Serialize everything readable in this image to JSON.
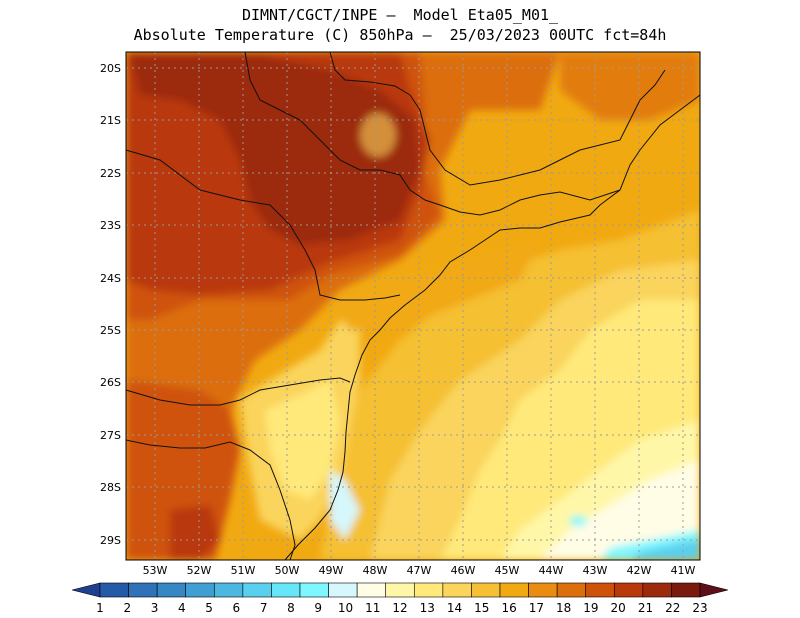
{
  "header": {
    "line1": "DIMNT/CGCT/INPE –  Model Eta05_M01_",
    "line2": "Absolute Temperature (C) 850hPa –  25/03/2023 00UTC fct=84h"
  },
  "map": {
    "lat_labels": [
      "20S",
      "21S",
      "22S",
      "23S",
      "24S",
      "25S",
      "26S",
      "27S",
      "28S",
      "29S"
    ],
    "lon_labels": [
      "53W",
      "52W",
      "51W",
      "50W",
      "49W",
      "48W",
      "47W",
      "46W",
      "45W",
      "44W",
      "43W",
      "42W",
      "41W"
    ],
    "lat_range": [
      -29.4,
      -19.9
    ],
    "lon_range": [
      -53.8,
      -40.3
    ],
    "grid": true
  },
  "colorbar": {
    "labels": [
      "1",
      "2",
      "3",
      "4",
      "5",
      "6",
      "7",
      "8",
      "9",
      "10",
      "11",
      "12",
      "13",
      "14",
      "15",
      "16",
      "17",
      "18",
      "19",
      "20",
      "21",
      "22",
      "23"
    ],
    "colors": [
      "#1f3f8f",
      "#255aa8",
      "#2f72b8",
      "#3588c4",
      "#3f9fd2",
      "#4cb8e0",
      "#5acfee",
      "#66e6f9",
      "#7ff7ff",
      "#d6f7fb",
      "#fffde6",
      "#fff7a8",
      "#ffe97a",
      "#fad45b",
      "#f5c033",
      "#f1a912",
      "#ea8c0f",
      "#dc6e0c",
      "#cf520b",
      "#b9390b",
      "#9c2a0c",
      "#7a1a0f",
      "#5e0f18"
    ]
  }
}
